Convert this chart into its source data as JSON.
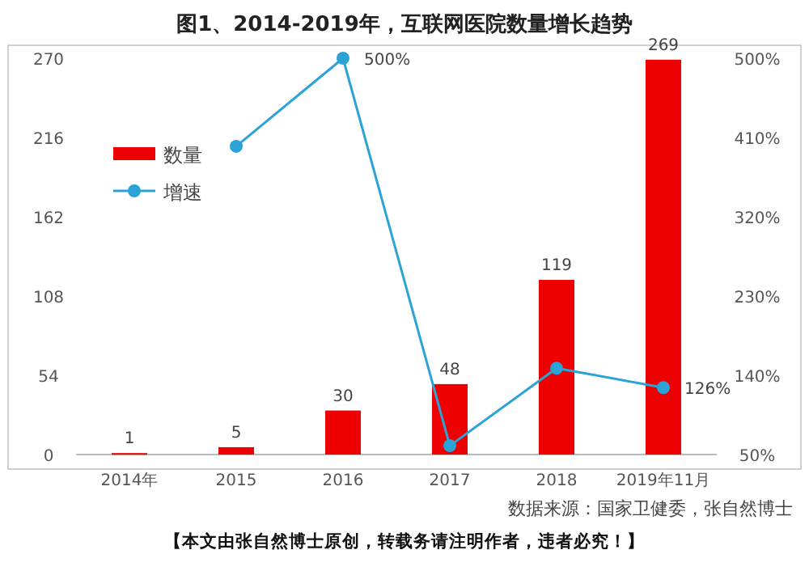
{
  "chart_data": {
    "type": "bar",
    "title": "图1、2014-2019年，互联网医院数量增长趋势",
    "categories": [
      "2014年",
      "2015",
      "2016",
      "2017",
      "2018",
      "2019年11月"
    ],
    "series": [
      {
        "name": "数量",
        "color": "#ee0000",
        "values": [
          1,
          5,
          30,
          48,
          119,
          269
        ],
        "data_labels": true
      },
      {
        "name": "增速",
        "type": "line",
        "axis": "y2",
        "color": "#2ba3d6",
        "marker": "circle",
        "values": [
          null,
          400,
          500,
          60,
          148,
          126
        ],
        "value_labels": [
          null,
          null,
          "500%",
          null,
          null,
          "126%"
        ]
      }
    ],
    "ylim": [
      0,
      270
    ],
    "yticks": [
      0,
      54,
      108,
      162,
      216,
      270
    ],
    "y2lim": [
      50,
      500
    ],
    "y2ticks": [
      {
        "value": 50,
        "label": "50%"
      },
      {
        "value": 140,
        "label": "140%"
      },
      {
        "value": 230,
        "label": "230%"
      },
      {
        "value": 320,
        "label": "320%"
      },
      {
        "value": 410,
        "label": "410%"
      },
      {
        "value": 500,
        "label": "500%"
      }
    ],
    "legend": "top left",
    "grid": false,
    "annotations": [
      "数据来源：国家卫健委，张自然博士",
      "【本文由张自然博士原创，转载务请注明作者，违者必究！】"
    ]
  }
}
